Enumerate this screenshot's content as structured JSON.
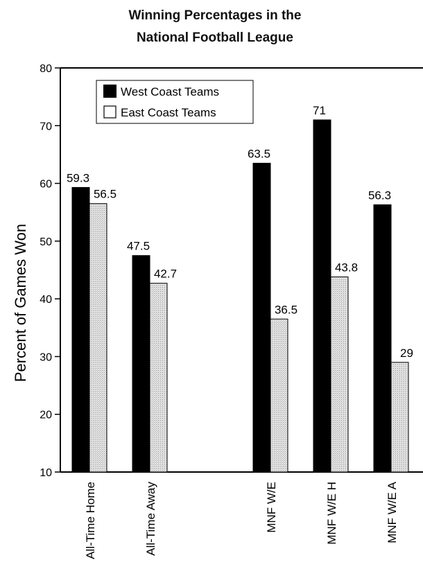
{
  "chart_data": {
    "type": "bar",
    "title_lines": [
      "Winning Percentages in the",
      "National Football League"
    ],
    "ylabel": "Percent of Games Won",
    "xlabel": "",
    "ylim": [
      10,
      80
    ],
    "yticks": [
      10,
      20,
      30,
      40,
      50,
      60,
      70,
      80
    ],
    "legend_position": "top-left",
    "categories": [
      "All-Time Home",
      "All-Time Away",
      "MNF W/E",
      "MNF W/E H",
      "MNF W/E A"
    ],
    "series": [
      {
        "name": "West Coast Teams",
        "values": [
          59.3,
          47.5,
          63.5,
          71,
          56.3
        ],
        "labels": [
          "59.3",
          "47.5",
          "63.5",
          "71",
          "56.3"
        ],
        "color": "#000000"
      },
      {
        "name": "East Coast Teams",
        "values": [
          56.5,
          42.7,
          36.5,
          43.8,
          29
        ],
        "labels": [
          "56.5",
          "42.7",
          "36.5",
          "43.8",
          "29"
        ],
        "color": "#d8d8d8"
      }
    ]
  }
}
